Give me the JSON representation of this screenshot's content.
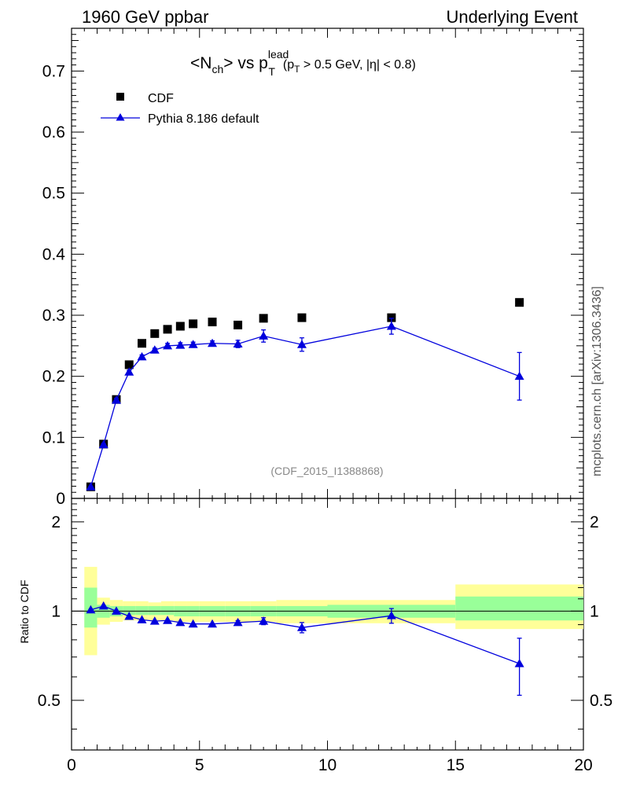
{
  "header": {
    "left": "1960 GeV ppbar",
    "right": "Underlying Event"
  },
  "side_label": "mcplots.cern.ch [arXiv:1306.3436]",
  "analysis_id": "(CDF_2015_I1388868)",
  "title": {
    "part1": "<N",
    "part1_sub": "ch",
    "part2": "> vs p",
    "part2_sup": "lead",
    "part2_sub": "T",
    "cut_open": "(p",
    "cut_sub": "T",
    "cut_rest": " > 0.5 GeV, |",
    "cut_eta": "η",
    "cut_end": "| < 0.8)"
  },
  "colors": {
    "data": "#000000",
    "mc": "#0000dd",
    "band_outer": "#ffff99",
    "band_inner": "#99ff99",
    "grey_text": "#888888"
  },
  "chart_data": [
    {
      "type": "scatter",
      "panel": "main",
      "xlim": [
        0,
        20
      ],
      "ylim": [
        0,
        0.77
      ],
      "yticks": [
        0,
        0.1,
        0.2,
        0.3,
        0.4,
        0.5,
        0.6,
        0.7
      ],
      "ytick_labels": [
        "0",
        "0.1",
        "0.2",
        "0.3",
        "0.4",
        "0.5",
        "0.6",
        "0.7"
      ],
      "legend": {
        "placement": "top-left"
      },
      "series": [
        {
          "name": "CDF",
          "marker": "square",
          "x": [
            0.75,
            1.25,
            1.75,
            2.25,
            2.75,
            3.25,
            3.75,
            4.25,
            4.75,
            5.5,
            6.5,
            7.5,
            9.0,
            12.5,
            17.5
          ],
          "y": [
            0.019,
            0.089,
            0.162,
            0.219,
            0.254,
            0.27,
            0.277,
            0.282,
            0.286,
            0.289,
            0.284,
            0.295,
            0.296,
            0.296,
            0.321
          ]
        },
        {
          "name": "Pythia 8.186 default",
          "marker": "triangle",
          "line": true,
          "x": [
            0.75,
            1.25,
            1.75,
            2.25,
            2.75,
            3.25,
            3.75,
            4.25,
            4.75,
            5.5,
            6.5,
            7.5,
            9.0,
            12.5,
            17.5
          ],
          "y": [
            0.019,
            0.088,
            0.161,
            0.207,
            0.232,
            0.243,
            0.25,
            0.251,
            0.252,
            0.254,
            0.253,
            0.266,
            0.252,
            0.282,
            0.2
          ],
          "yerr": [
            0.001,
            0.002,
            0.003,
            0.003,
            0.003,
            0.003,
            0.004,
            0.004,
            0.004,
            0.004,
            0.006,
            0.01,
            0.011,
            0.013,
            0.039
          ]
        }
      ]
    },
    {
      "type": "scatter",
      "panel": "ratio",
      "ylabel": "Ratio to CDF",
      "xlim": [
        0,
        20
      ],
      "ylim": [
        0.34,
        2.4
      ],
      "yscale": "log",
      "xticks": [
        0,
        5,
        10,
        15,
        20
      ],
      "xtick_labels": [
        "0",
        "5",
        "10",
        "15",
        "20"
      ],
      "yticks": [
        0.5,
        1,
        2
      ],
      "ytick_labels": [
        "0.5",
        "1",
        "2"
      ],
      "reference_line": 1,
      "bands": {
        "edges": [
          0.5,
          1.0,
          1.5,
          2.0,
          2.5,
          3.0,
          3.5,
          4.0,
          4.5,
          5.0,
          6.0,
          7.0,
          8.0,
          10.0,
          15.0,
          20.0
        ],
        "outer_lo": [
          0.71,
          0.9,
          0.92,
          0.93,
          0.93,
          0.93,
          0.93,
          0.92,
          0.92,
          0.92,
          0.92,
          0.92,
          0.91,
          0.91,
          0.87
        ],
        "outer_hi": [
          1.41,
          1.11,
          1.09,
          1.08,
          1.08,
          1.07,
          1.08,
          1.08,
          1.08,
          1.08,
          1.08,
          1.08,
          1.09,
          1.09,
          1.23
        ],
        "inner_lo": [
          0.88,
          0.95,
          0.96,
          0.97,
          0.97,
          0.97,
          0.97,
          0.96,
          0.96,
          0.96,
          0.96,
          0.96,
          0.96,
          0.95,
          0.93
        ],
        "inner_hi": [
          1.2,
          1.05,
          1.04,
          1.04,
          1.04,
          1.04,
          1.04,
          1.04,
          1.04,
          1.04,
          1.04,
          1.04,
          1.04,
          1.05,
          1.12
        ]
      },
      "series": [
        {
          "name": "Pythia 8.186 default",
          "marker": "triangle",
          "line": true,
          "x": [
            0.75,
            1.25,
            1.75,
            2.25,
            2.75,
            3.25,
            3.75,
            4.25,
            4.75,
            5.5,
            6.5,
            7.5,
            9.0,
            12.5,
            17.5
          ],
          "y": [
            1.01,
            1.04,
            1.0,
            0.96,
            0.935,
            0.925,
            0.93,
            0.915,
            0.905,
            0.905,
            0.915,
            0.925,
            0.88,
            0.965,
            0.665
          ],
          "yerr": [
            0.004,
            0.005,
            0.005,
            0.005,
            0.005,
            0.006,
            0.006,
            0.007,
            0.007,
            0.008,
            0.014,
            0.025,
            0.035,
            0.055,
            0.145
          ]
        }
      ]
    }
  ]
}
